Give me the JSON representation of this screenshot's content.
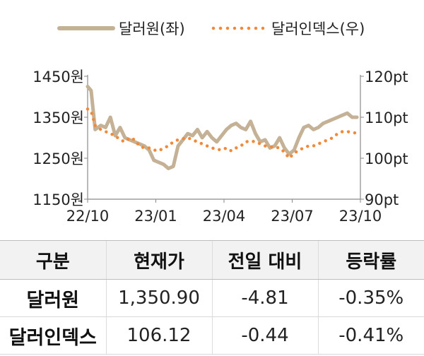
{
  "chart_data": {
    "type": "line",
    "legend_position": "top",
    "grid": false,
    "x_ticks": [
      "22/10",
      "23/01",
      "23/04",
      "23/07",
      "23/10"
    ],
    "y_left": {
      "ticks": [
        "1450원",
        "1350원",
        "1250원",
        "1150원"
      ],
      "lim": [
        1150,
        1450
      ]
    },
    "y_right": {
      "ticks": [
        "120pt",
        "110pt",
        "100pt",
        "90pt"
      ],
      "lim": [
        90,
        120
      ]
    },
    "series": [
      {
        "name": "달러원(좌)",
        "axis": "left",
        "style": "solid",
        "color": "#c4b196",
        "x": [
          "2022-10-01",
          "2022-10-06",
          "2022-10-12",
          "2022-10-20",
          "2022-10-27",
          "2022-11-03",
          "2022-11-10",
          "2022-11-17",
          "2022-11-24",
          "2022-12-01",
          "2022-12-08",
          "2022-12-15",
          "2022-12-22",
          "2022-12-29",
          "2023-01-05",
          "2023-01-12",
          "2023-01-19",
          "2023-01-26",
          "2023-02-02",
          "2023-02-09",
          "2023-02-16",
          "2023-02-23",
          "2023-03-02",
          "2023-03-09",
          "2023-03-16",
          "2023-03-23",
          "2023-03-30",
          "2023-04-06",
          "2023-04-13",
          "2023-04-20",
          "2023-04-27",
          "2023-05-04",
          "2023-05-11",
          "2023-05-18",
          "2023-05-25",
          "2023-06-01",
          "2023-06-08",
          "2023-06-15",
          "2023-06-22",
          "2023-06-29",
          "2023-07-06",
          "2023-07-13",
          "2023-07-20",
          "2023-07-27",
          "2023-08-03",
          "2023-08-10",
          "2023-08-17",
          "2023-08-24",
          "2023-08-31",
          "2023-09-07",
          "2023-09-14",
          "2023-09-21",
          "2023-09-28",
          "2023-10-05",
          "2023-10-12",
          "2023-10-19",
          "2023-10-26"
        ],
        "values": [
          1425,
          1415,
          1320,
          1330,
          1325,
          1350,
          1305,
          1325,
          1300,
          1295,
          1290,
          1285,
          1280,
          1270,
          1245,
          1240,
          1235,
          1225,
          1230,
          1280,
          1295,
          1310,
          1305,
          1320,
          1300,
          1315,
          1300,
          1290,
          1305,
          1320,
          1330,
          1335,
          1325,
          1320,
          1340,
          1310,
          1290,
          1295,
          1275,
          1280,
          1300,
          1275,
          1260,
          1270,
          1300,
          1325,
          1330,
          1320,
          1325,
          1335,
          1340,
          1345,
          1350,
          1355,
          1360,
          1350,
          1350
        ]
      },
      {
        "name": "달러인덱스(우)",
        "axis": "right",
        "style": "dotted",
        "color": "#f08a3a",
        "x": [
          "2022-10-01",
          "2022-10-06",
          "2022-10-12",
          "2022-10-20",
          "2022-10-27",
          "2022-11-03",
          "2022-11-10",
          "2022-11-17",
          "2022-11-24",
          "2022-12-01",
          "2022-12-08",
          "2022-12-15",
          "2022-12-22",
          "2022-12-29",
          "2023-01-05",
          "2023-01-12",
          "2023-01-19",
          "2023-01-26",
          "2023-02-02",
          "2023-02-09",
          "2023-02-16",
          "2023-02-23",
          "2023-03-02",
          "2023-03-09",
          "2023-03-16",
          "2023-03-23",
          "2023-03-30",
          "2023-04-06",
          "2023-04-13",
          "2023-04-20",
          "2023-04-27",
          "2023-05-04",
          "2023-05-11",
          "2023-05-18",
          "2023-05-25",
          "2023-06-01",
          "2023-06-08",
          "2023-06-15",
          "2023-06-22",
          "2023-06-29",
          "2023-07-06",
          "2023-07-13",
          "2023-07-20",
          "2023-07-27",
          "2023-08-03",
          "2023-08-10",
          "2023-08-17",
          "2023-08-24",
          "2023-08-31",
          "2023-09-07",
          "2023-09-14",
          "2023-09-21",
          "2023-09-28",
          "2023-10-05",
          "2023-10-12",
          "2023-10-19",
          "2023-10-26"
        ],
        "values": [
          112.0,
          111.5,
          108.0,
          107.0,
          106.5,
          106.0,
          105.5,
          104.5,
          104.0,
          105.0,
          104.5,
          103.0,
          102.5,
          102.5,
          102.0,
          101.8,
          102.5,
          103.0,
          104.0,
          104.5,
          104.8,
          105.0,
          104.5,
          104.0,
          103.5,
          103.0,
          102.5,
          102.2,
          102.0,
          102.5,
          101.8,
          102.5,
          103.0,
          104.0,
          104.2,
          104.0,
          103.5,
          103.0,
          102.8,
          102.7,
          102.5,
          101.5,
          100.0,
          101.2,
          102.0,
          102.5,
          103.0,
          103.0,
          103.5,
          104.0,
          104.5,
          105.0,
          106.0,
          106.5,
          106.5,
          106.3,
          106.1
        ]
      }
    ]
  },
  "table": {
    "headers": [
      "구분",
      "현재가",
      "전일 대비",
      "등락률"
    ],
    "rows": [
      [
        "달러원",
        "1,350.90",
        "-4.81",
        "-0.35%"
      ],
      [
        "달러인덱스",
        "106.12",
        "-0.44",
        "-0.41%"
      ]
    ]
  }
}
